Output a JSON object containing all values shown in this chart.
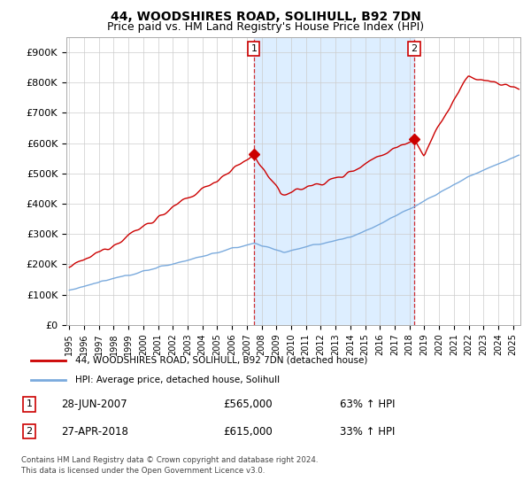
{
  "title": "44, WOODSHIRES ROAD, SOLIHULL, B92 7DN",
  "subtitle": "Price paid vs. HM Land Registry's House Price Index (HPI)",
  "ylabel_ticks": [
    "£0",
    "£100K",
    "£200K",
    "£300K",
    "£400K",
    "£500K",
    "£600K",
    "£700K",
    "£800K",
    "£900K"
  ],
  "ytick_values": [
    0,
    100000,
    200000,
    300000,
    400000,
    500000,
    600000,
    700000,
    800000,
    900000
  ],
  "ylim": [
    0,
    950000
  ],
  "xlim_start": 1994.8,
  "xlim_end": 2025.5,
  "red_color": "#cc0000",
  "blue_color": "#7aaadd",
  "shade_color": "#ddeeff",
  "marker1_x": 2007.48,
  "marker1_y": 565000,
  "marker2_x": 2018.32,
  "marker2_y": 615000,
  "legend_line1": "44, WOODSHIRES ROAD, SOLIHULL, B92 7DN (detached house)",
  "legend_line2": "HPI: Average price, detached house, Solihull",
  "table_row1_num": "1",
  "table_row1_date": "28-JUN-2007",
  "table_row1_price": "£565,000",
  "table_row1_hpi": "63% ↑ HPI",
  "table_row2_num": "2",
  "table_row2_date": "27-APR-2018",
  "table_row2_price": "£615,000",
  "table_row2_hpi": "33% ↑ HPI",
  "footnote1": "Contains HM Land Registry data © Crown copyright and database right 2024.",
  "footnote2": "This data is licensed under the Open Government Licence v3.0.",
  "bg_color": "#ffffff",
  "grid_color": "#cccccc",
  "title_fontsize": 10,
  "subtitle_fontsize": 9
}
